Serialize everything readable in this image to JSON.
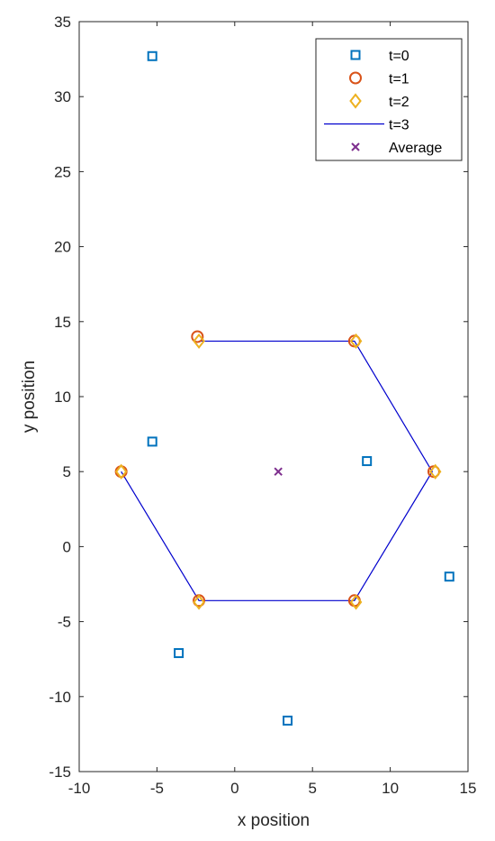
{
  "chart_data": {
    "type": "scatter",
    "xlabel": "x position",
    "ylabel": "y position",
    "xlim": [
      -10,
      15
    ],
    "ylim": [
      -15,
      35
    ],
    "x_ticks": [
      -10,
      -5,
      0,
      5,
      10,
      15
    ],
    "y_ticks": [
      -15,
      -10,
      -5,
      0,
      5,
      10,
      15,
      20,
      25,
      30,
      35
    ],
    "grid": false,
    "legend_position": "top-right",
    "series": [
      {
        "name": "t=0",
        "marker": "square",
        "color": "#0072BD",
        "points": [
          [
            -5.3,
            32.7
          ],
          [
            -5.3,
            7.0
          ],
          [
            8.5,
            5.7
          ],
          [
            13.8,
            -2.0
          ],
          [
            -3.6,
            -7.1
          ],
          [
            3.4,
            -11.6
          ]
        ]
      },
      {
        "name": "t=1",
        "marker": "circle",
        "color": "#D95319",
        "points": [
          [
            -2.4,
            14.0
          ],
          [
            7.7,
            13.7
          ],
          [
            12.8,
            5.0
          ],
          [
            7.7,
            -3.6
          ],
          [
            -2.3,
            -3.6
          ],
          [
            -7.3,
            5.0
          ]
        ]
      },
      {
        "name": "t=2",
        "marker": "diamond",
        "color": "#EDB120",
        "points": [
          [
            -2.3,
            13.7
          ],
          [
            7.8,
            13.7
          ],
          [
            12.9,
            5.0
          ],
          [
            7.8,
            -3.7
          ],
          [
            -2.3,
            -3.7
          ],
          [
            -7.3,
            5.0
          ]
        ]
      },
      {
        "name": "t=3",
        "marker": "line",
        "color": "#0000CD",
        "points": [
          [
            -2.3,
            13.7
          ],
          [
            7.7,
            13.7
          ],
          [
            12.7,
            5.0
          ],
          [
            7.7,
            -3.6
          ],
          [
            -2.3,
            -3.6
          ],
          [
            -7.3,
            5.0
          ]
        ]
      },
      {
        "name": "Average",
        "marker": "x",
        "color": "#7E2F8E",
        "points": [
          [
            2.8,
            5.0
          ]
        ]
      }
    ]
  }
}
